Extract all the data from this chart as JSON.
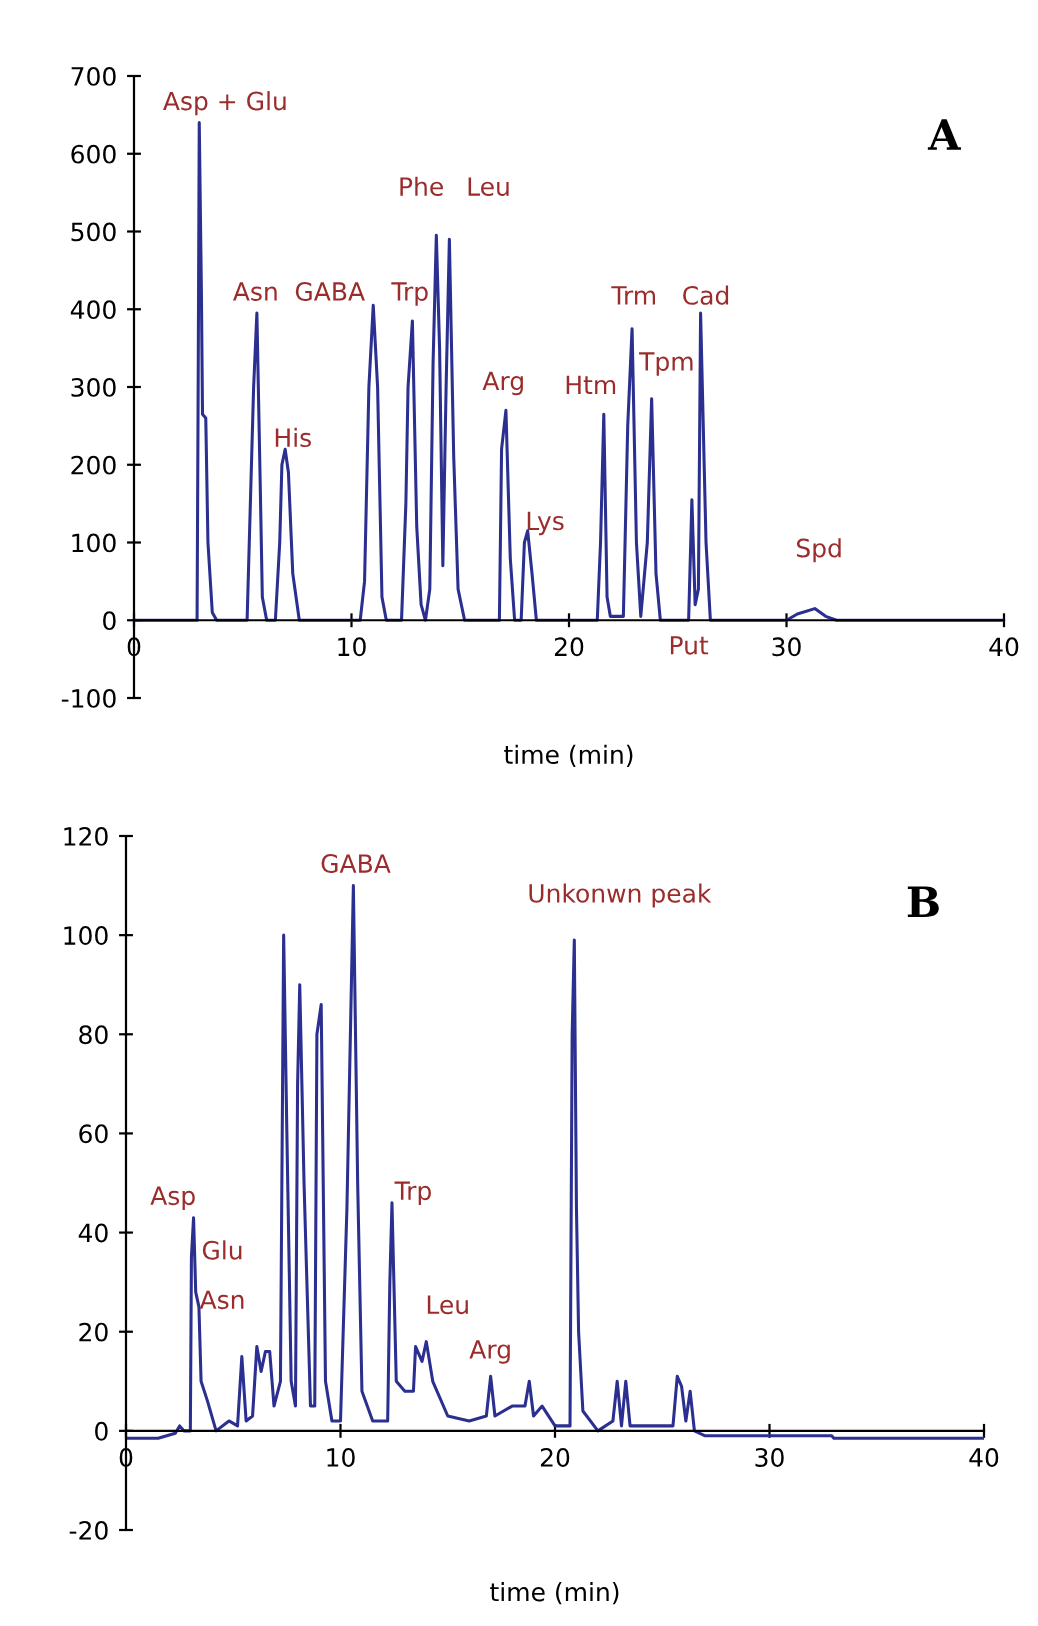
{
  "chart_data": [
    {
      "type": "line",
      "xlabel": "time (min)",
      "xlim": [
        0,
        40
      ],
      "xticks": [
        0,
        10,
        20,
        30,
        40
      ],
      "ylim": [
        -100,
        700
      ],
      "yticks": [
        -100,
        0,
        100,
        200,
        300,
        400,
        500,
        600,
        700
      ],
      "grid": false,
      "legend": false,
      "marker": "none",
      "line_style": "solid",
      "annotations": [
        {
          "text": "Asp + Glu",
          "x": 3.0,
          "y": 640
        },
        {
          "text": "Asn",
          "x": 5.65,
          "y": 395
        },
        {
          "text": "GABA",
          "x": 11.0,
          "y": 405
        },
        {
          "text": "His",
          "x": 6.95,
          "y": 220
        },
        {
          "text": "Trp",
          "x": 12.8,
          "y": 385
        },
        {
          "text": "Phe",
          "x": 13.9,
          "y": 495
        },
        {
          "text": "Leu",
          "x": 14.5,
          "y": 490
        },
        {
          "text": "Arg",
          "x": 17.1,
          "y": 270
        },
        {
          "text": "Lys",
          "x": 18.1,
          "y": 115
        },
        {
          "text": "Htm",
          "x": 21.6,
          "y": 265
        },
        {
          "text": "Trm",
          "x": 22.9,
          "y": 375
        },
        {
          "text": "Tpm",
          "x": 23.8,
          "y": 285
        },
        {
          "text": "Cad",
          "x": 26.05,
          "y": 395
        },
        {
          "text": "Put",
          "x": 25.65,
          "y": 0
        },
        {
          "text": "Spd",
          "x": 31.3,
          "y": 15
        },
        "A"
      ],
      "series": [
        {
          "color": "#2b2f8f",
          "x": [
            0,
            2.9,
            2.95,
            3.0,
            3.1,
            3.15,
            3.3,
            3.4,
            3.6,
            3.8,
            5.2,
            5.35,
            5.5,
            5.65,
            5.8,
            5.9,
            6.1,
            6.5,
            6.7,
            6.8,
            6.95,
            7.1,
            7.3,
            7.6,
            10.4,
            10.6,
            10.8,
            11.0,
            11.2,
            11.4,
            11.6,
            12.3,
            12.5,
            12.6,
            12.8,
            13.0,
            13.2,
            13.4,
            13.6,
            13.75,
            13.9,
            14.05,
            14.2,
            14.35,
            14.5,
            14.7,
            14.9,
            15.2,
            16.8,
            16.9,
            17.1,
            17.3,
            17.5,
            17.8,
            17.95,
            18.1,
            18.3,
            18.5,
            21.3,
            21.45,
            21.6,
            21.75,
            21.9,
            22.5,
            22.7,
            22.9,
            23.1,
            23.3,
            23.6,
            23.8,
            24.0,
            24.2,
            25.5,
            25.65,
            25.8,
            25.95,
            26.05,
            26.3,
            26.5,
            30,
            30.5,
            31.3,
            31.8,
            32.3,
            40
          ],
          "values": [
            0,
            0,
            300,
            640,
            420,
            265,
            260,
            100,
            10,
            0,
            0,
            150,
            300,
            395,
            180,
            30,
            0,
            0,
            100,
            200,
            220,
            190,
            60,
            0,
            0,
            50,
            300,
            405,
            300,
            30,
            0,
            0,
            150,
            300,
            385,
            120,
            20,
            0,
            40,
            330,
            495,
            350,
            70,
            300,
            490,
            210,
            40,
            0,
            0,
            220,
            270,
            80,
            0,
            0,
            100,
            115,
            60,
            0,
            0,
            100,
            265,
            30,
            5,
            5,
            250,
            375,
            100,
            5,
            100,
            285,
            60,
            0,
            0,
            155,
            20,
            40,
            395,
            100,
            0,
            0,
            8,
            15,
            5,
            0,
            0
          ]
        }
      ]
    },
    {
      "type": "line",
      "xlabel": "time (min)",
      "xlim": [
        0,
        40
      ],
      "xticks": [
        0,
        10,
        20,
        30,
        40
      ],
      "ylim": [
        -20,
        120
      ],
      "yticks": [
        -20,
        0,
        20,
        40,
        60,
        80,
        100,
        120
      ],
      "grid": false,
      "legend": false,
      "marker": "none",
      "line_style": "solid",
      "annotations": [
        {
          "text": "Asp",
          "x": 3.15,
          "y": 43
        },
        {
          "text": "Glu",
          "x": 3.25,
          "y": 28
        },
        {
          "text": "Asn",
          "x": 3.4,
          "y": 25
        },
        {
          "text": "GABA",
          "x": 10.6,
          "y": 110
        },
        {
          "text": "Trp",
          "x": 12.4,
          "y": 46
        },
        {
          "text": "Leu",
          "x": 14.0,
          "y": 18
        },
        {
          "text": "Arg",
          "x": 17.0,
          "y": 11
        },
        {
          "text": "Unkonwn peak",
          "x": 20.9,
          "y": 99
        },
        "B"
      ],
      "series": [
        {
          "color": "#2b2f8f",
          "x": [
            0,
            1.5,
            2.3,
            2.5,
            2.7,
            3.0,
            3.05,
            3.15,
            3.25,
            3.4,
            3.5,
            3.8,
            4.2,
            4.8,
            5.2,
            5.4,
            5.6,
            5.9,
            6.0,
            6.1,
            6.3,
            6.5,
            6.7,
            6.9,
            7.2,
            7.35,
            7.5,
            7.7,
            7.9,
            8.0,
            8.1,
            8.3,
            8.6,
            8.8,
            8.9,
            9.1,
            9.3,
            9.6,
            10.0,
            10.3,
            10.6,
            10.8,
            11.0,
            11.5,
            12.2,
            12.3,
            12.4,
            12.6,
            13.0,
            13.4,
            13.5,
            13.8,
            14.0,
            14.3,
            15.0,
            16.0,
            16.8,
            17.0,
            17.2,
            18.0,
            18.6,
            18.8,
            19.0,
            19.4,
            20.0,
            20.7,
            20.8,
            20.9,
            21.0,
            21.1,
            21.3,
            22.0,
            22.7,
            22.9,
            23.1,
            23.3,
            23.5,
            24.0,
            25.5,
            25.7,
            25.9,
            26.1,
            26.3,
            26.5,
            27,
            30,
            32.9,
            33,
            40
          ],
          "values": [
            -1.5,
            -1.5,
            -0.5,
            1,
            0,
            0,
            35,
            43,
            28,
            25,
            10,
            6,
            0,
            2,
            1,
            15,
            2,
            3,
            10,
            17,
            12,
            16,
            16,
            5,
            10,
            100,
            60,
            10,
            5,
            70,
            90,
            50,
            5,
            5,
            80,
            86,
            10,
            2,
            2,
            45,
            110,
            50,
            8,
            2,
            2,
            30,
            46,
            10,
            8,
            8,
            17,
            14,
            18,
            10,
            3,
            2,
            3,
            11,
            3,
            5,
            5,
            10,
            3,
            5,
            1,
            1,
            80,
            99,
            45,
            20,
            4,
            0,
            2,
            10,
            1,
            10,
            1,
            1,
            1,
            11,
            9,
            2,
            8,
            0,
            -1,
            -1,
            -1,
            -1.5,
            -1.5
          ]
        }
      ]
    }
  ]
}
